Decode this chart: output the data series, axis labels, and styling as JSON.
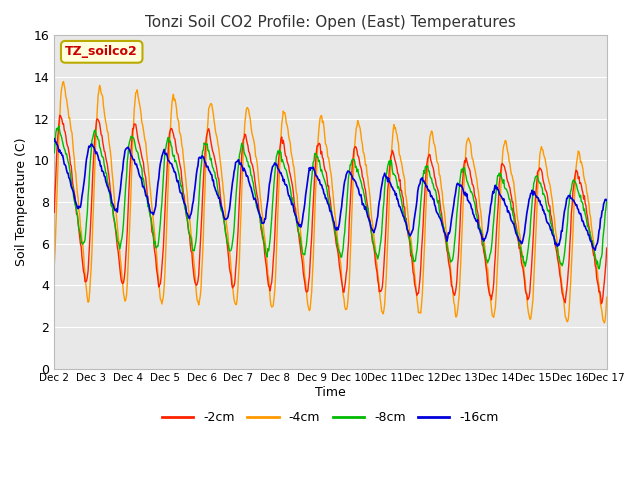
{
  "title": "Tonzi Soil CO2 Profile: Open (East) Temperatures",
  "xlabel": "Time",
  "ylabel": "Soil Temperature (C)",
  "ylim": [
    0,
    16
  ],
  "xlim_days": [
    2,
    17
  ],
  "annotation": "TZ_soilco2",
  "annotation_color": "#cc0000",
  "annotation_bg": "#ffffdd",
  "annotation_edge": "#bbaa00",
  "bg_color": "#e8e8e8",
  "grid_color": "#ffffff",
  "legend": [
    "-2cm",
    "-4cm",
    "-8cm",
    "-16cm"
  ],
  "line_colors": [
    "#ff2200",
    "#ff9900",
    "#00bb00",
    "#0000dd"
  ],
  "x_ticks": [
    2,
    3,
    4,
    5,
    6,
    7,
    8,
    9,
    10,
    11,
    12,
    13,
    14,
    15,
    16,
    17
  ],
  "x_tick_labels": [
    "Dec 2",
    "Dec 3",
    "Dec 4",
    "Dec 5",
    "Dec 6",
    "Dec 7",
    "Dec 8",
    "Dec 9",
    "Dec 10",
    "Dec 11",
    "Dec 12",
    "Dec 13",
    "Dec 14",
    "Dec 15",
    "Dec 16",
    "Dec 17"
  ],
  "n_points": 720,
  "figsize": [
    6.4,
    4.8
  ],
  "dpi": 100
}
